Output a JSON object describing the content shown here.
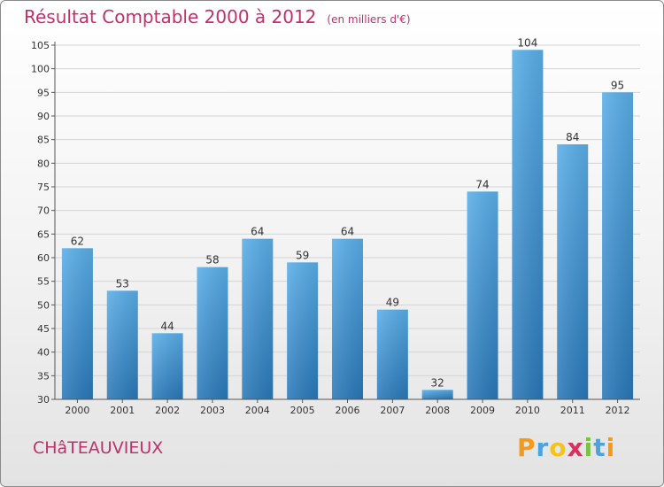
{
  "header": {
    "title": "Résultat Comptable 2000 à 2012",
    "subtitle": "(en milliers d'€)"
  },
  "town": "CHâTEAUVIEUX",
  "logo": {
    "text": "Proxiti",
    "letters": [
      {
        "ch": "P",
        "color": "#f39a1e"
      },
      {
        "ch": "r",
        "color": "#4aa3df"
      },
      {
        "ch": "o",
        "color": "#f3c41e"
      },
      {
        "ch": "x",
        "color": "#d8305f"
      },
      {
        "ch": "i",
        "color": "#7cc242"
      },
      {
        "ch": "t",
        "color": "#4aa3df"
      },
      {
        "ch": "i",
        "color": "#f39a1e"
      }
    ]
  },
  "chart_data": {
    "type": "bar",
    "title": "Résultat Comptable 2000 à 2012",
    "subtitle": "(en milliers d'€)",
    "xlabel": "",
    "ylabel": "",
    "categories": [
      "2000",
      "2001",
      "2002",
      "2003",
      "2004",
      "2005",
      "2006",
      "2007",
      "2008",
      "2009",
      "2010",
      "2011",
      "2012"
    ],
    "values": [
      62,
      53,
      44,
      58,
      64,
      59,
      64,
      49,
      32,
      74,
      104,
      84,
      95
    ],
    "ylim": [
      30,
      105
    ],
    "yticks": [
      30,
      35,
      40,
      45,
      50,
      55,
      60,
      65,
      70,
      75,
      80,
      85,
      90,
      95,
      100,
      105
    ],
    "grid": true,
    "bar_color_top": "#5aaee8",
    "bar_color_bottom": "#2a78b8"
  }
}
